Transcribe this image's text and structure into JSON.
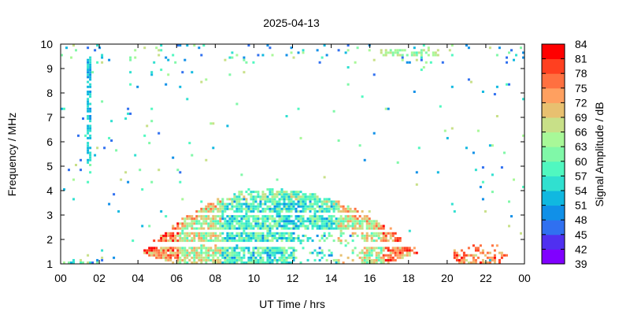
{
  "chart_data": {
    "type": "heatmap",
    "title": "2025-04-13",
    "xlabel": "UT Time / hrs",
    "ylabel": "Frequency / MHz",
    "xlim": [
      0,
      24
    ],
    "ylim": [
      1,
      10
    ],
    "x_ticks": [
      "00",
      "02",
      "04",
      "06",
      "08",
      "10",
      "12",
      "14",
      "16",
      "18",
      "20",
      "22",
      "00"
    ],
    "y_ticks": [
      "1",
      "2",
      "3",
      "4",
      "5",
      "6",
      "7",
      "8",
      "9",
      "10"
    ],
    "colorbar": {
      "label": "Signal Amplitude / dB",
      "range": [
        39,
        84
      ],
      "ticks": [
        "39",
        "42",
        "45",
        "48",
        "51",
        "54",
        "57",
        "60",
        "63",
        "66",
        "69",
        "72",
        "75",
        "78",
        "81",
        "84"
      ],
      "colors": [
        "#8000ff",
        "#5030f0",
        "#3070f0",
        "#1090e8",
        "#10b8e0",
        "#30e0d0",
        "#50f8c0",
        "#80f8a8",
        "#a8f898",
        "#c8e088",
        "#e8c070",
        "#ffa060",
        "#ff7040",
        "#ff4020",
        "#ff0000"
      ]
    },
    "features": [
      {
        "name": "daytime dome",
        "t_start": 3.8,
        "t_end": 18.8,
        "f_low": 1,
        "f_peak": 4.1,
        "peak_t": 10,
        "amplitude_db": [
          48,
          81
        ]
      },
      {
        "name": "evening patch",
        "t_start": 20.3,
        "t_end": 23.1,
        "f_low": 1,
        "f_high": 1.8,
        "amplitude_db": [
          66,
          81
        ]
      },
      {
        "name": "high band",
        "t_start": 16.5,
        "t_end": 19.5,
        "f_low": 9.4,
        "f_high": 9.8,
        "amplitude_db": [
          57,
          69
        ]
      },
      {
        "name": "vertical line",
        "t": 1.4,
        "f_low": 5,
        "f_high": 9.5,
        "amplitude_db": [
          51,
          57
        ]
      }
    ]
  }
}
